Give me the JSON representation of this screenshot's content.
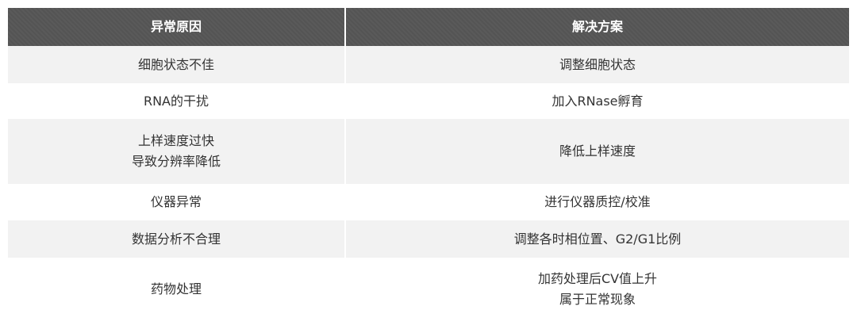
{
  "table": {
    "header": [
      "异常原因",
      "解决方案"
    ],
    "rows": [
      [
        [
          "细胞状态不佳"
        ],
        [
          "调整细胞状态"
        ]
      ],
      [
        [
          "RNA的干扰"
        ],
        [
          "加入RNase孵育"
        ]
      ],
      [
        [
          "上样速度过快",
          "导致分辨率降低"
        ],
        [
          "降低上样速度"
        ]
      ],
      [
        [
          "仪器异常"
        ],
        [
          "进行仪器质控/校准"
        ]
      ],
      [
        [
          "数据分析不合理"
        ],
        [
          "调整各时相位置、G2/G1比例"
        ]
      ],
      [
        [
          "药物处理"
        ],
        [
          "加药处理后CV值上升",
          "属于正常现象"
        ]
      ]
    ]
  }
}
